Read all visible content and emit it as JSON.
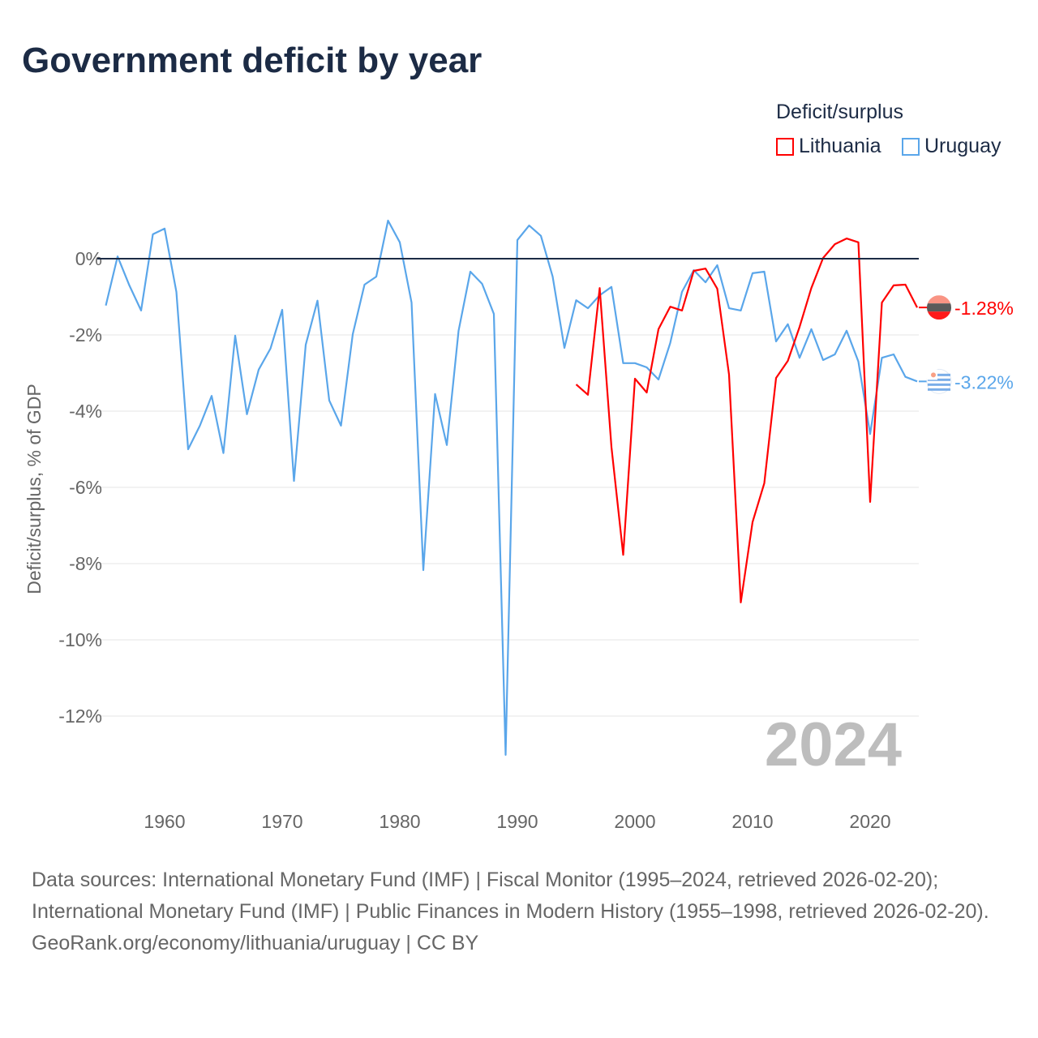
{
  "title": "Government deficit by year",
  "legend": {
    "title": "Deficit/surplus",
    "items": [
      {
        "name": "Lithuania",
        "color": "#ff0000"
      },
      {
        "name": "Uruguay",
        "color": "#5aa6ea"
      }
    ]
  },
  "chart_data": {
    "type": "line",
    "title": "Government deficit by year",
    "ylabel": "Deficit/surplus, % of GDP",
    "xlabel": "",
    "xlim": [
      1955,
      2024
    ],
    "ylim": [
      -14,
      1.2
    ],
    "yticks": [
      0,
      -2,
      -4,
      -6,
      -8,
      -10,
      -12
    ],
    "ytick_labels": [
      "0%",
      "-2%",
      "-4%",
      "-6%",
      "-8%",
      "-10%",
      "-12%"
    ],
    "xticks": [
      1960,
      1970,
      1980,
      1990,
      2000,
      2010,
      2020
    ],
    "xtick_labels": [
      "1960",
      "1970",
      "1980",
      "1990",
      "2000",
      "2010",
      "2020"
    ],
    "year_label": "2024",
    "series": [
      {
        "name": "Lithuania",
        "color": "#ff0000",
        "end_label": "-1.28%",
        "start": 1995,
        "values": [
          -3.3,
          -3.57,
          -0.77,
          -4.94,
          -7.77,
          -3.15,
          -3.51,
          -1.85,
          -1.26,
          -1.36,
          -0.32,
          -0.26,
          -0.79,
          -3.04,
          -9.02,
          -6.91,
          -5.89,
          -3.13,
          -2.68,
          -1.79,
          -0.77,
          0.02,
          0.38,
          0.53,
          0.43,
          -6.38,
          -1.15,
          -0.7,
          -0.68,
          -1.28
        ]
      },
      {
        "name": "Uruguay",
        "color": "#5aa6ea",
        "end_label": "-3.22%",
        "start": 1955,
        "values": [
          -1.23,
          0.06,
          -0.7,
          -1.36,
          0.64,
          0.79,
          -0.87,
          -5.0,
          -4.38,
          -3.6,
          -5.1,
          -2.02,
          -4.08,
          -2.91,
          -2.36,
          -1.34,
          -5.83,
          -2.26,
          -1.1,
          -3.72,
          -4.38,
          -1.98,
          -0.68,
          -0.47,
          1.0,
          0.43,
          -1.15,
          -8.17,
          -3.55,
          -4.89,
          -1.89,
          -0.34,
          -0.66,
          -1.45,
          -13.02,
          0.49,
          0.87,
          0.6,
          -0.47,
          -2.34,
          -1.09,
          -1.3,
          -0.96,
          -0.74,
          -2.74,
          -2.74,
          -2.85,
          -3.17,
          -2.21,
          -0.87,
          -0.3,
          -0.62,
          -0.17,
          -1.3,
          -1.36,
          -0.38,
          -0.34,
          -2.17,
          -1.72,
          -2.6,
          -1.85,
          -2.66,
          -2.51,
          -1.89,
          -2.7,
          -4.6,
          -2.6,
          -2.51,
          -3.1,
          -3.22
        ]
      }
    ]
  },
  "footer": {
    "sources": "Data sources: International Monetary Fund (IMF) | Fiscal Monitor (1995–2024, retrieved 2026-02-20); International Monetary Fund (IMF) | Public Finances in Modern History (1955–1998, retrieved 2026-02-20).",
    "credit": "GeoRank.org/economy/lithuania/uruguay | CC BY"
  }
}
